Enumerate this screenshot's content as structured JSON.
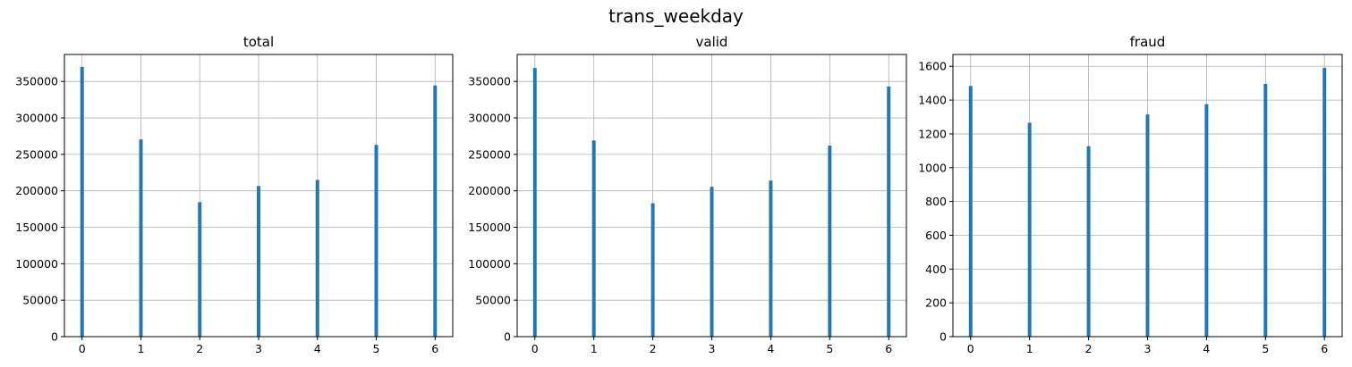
{
  "figure": {
    "suptitle": "trans_weekday"
  },
  "colors": {
    "bar": "#1f77b4",
    "grid": "#b0b0b0",
    "axis": "#000000"
  },
  "chart_data": [
    {
      "type": "bar",
      "title": "total",
      "xlabel": "",
      "ylabel": "",
      "x": [
        0,
        1,
        2,
        3,
        4,
        5,
        6
      ],
      "values": [
        370000,
        270500,
        184500,
        206500,
        215000,
        263000,
        344500
      ],
      "xlim": [
        -0.3,
        6.3
      ],
      "ylim": [
        0,
        387000
      ],
      "xticks": [
        0,
        1,
        2,
        3,
        4,
        5,
        6
      ],
      "yticks": [
        0,
        50000,
        100000,
        150000,
        200000,
        250000,
        300000,
        350000
      ],
      "grid": true,
      "legend": "none"
    },
    {
      "type": "bar",
      "title": "valid",
      "xlabel": "",
      "ylabel": "",
      "x": [
        0,
        1,
        2,
        3,
        4,
        5,
        6
      ],
      "values": [
        368500,
        269000,
        183000,
        205500,
        214000,
        262000,
        343000
      ],
      "xlim": [
        -0.3,
        6.3
      ],
      "ylim": [
        0,
        387000
      ],
      "xticks": [
        0,
        1,
        2,
        3,
        4,
        5,
        6
      ],
      "yticks": [
        0,
        50000,
        100000,
        150000,
        200000,
        250000,
        300000,
        350000
      ],
      "grid": true,
      "legend": "none"
    },
    {
      "type": "bar",
      "title": "fraud",
      "xlabel": "",
      "ylabel": "",
      "x": [
        0,
        1,
        2,
        3,
        4,
        5,
        6
      ],
      "values": [
        1484,
        1266,
        1127,
        1315,
        1376,
        1496,
        1591
      ],
      "xlim": [
        -0.3,
        6.3
      ],
      "ylim": [
        0,
        1670
      ],
      "xticks": [
        0,
        1,
        2,
        3,
        4,
        5,
        6
      ],
      "yticks": [
        0,
        200,
        400,
        600,
        800,
        1000,
        1200,
        1400,
        1600
      ],
      "grid": true,
      "legend": "none"
    }
  ]
}
